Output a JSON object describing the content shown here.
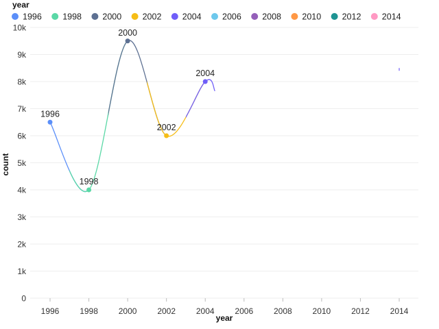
{
  "chart_data": {
    "type": "line",
    "legend": {
      "title": "year",
      "placement": "top-left",
      "entries": [
        {
          "label": "1996",
          "color": "#5b8ff9"
        },
        {
          "label": "1998",
          "color": "#5ad8a6"
        },
        {
          "label": "2000",
          "color": "#5d7092"
        },
        {
          "label": "2002",
          "color": "#f6bd16"
        },
        {
          "label": "2004",
          "color": "#6f5ef9"
        },
        {
          "label": "2006",
          "color": "#6dc8ec"
        },
        {
          "label": "2008",
          "color": "#945fb9"
        },
        {
          "label": "2010",
          "color": "#ff9845"
        },
        {
          "label": "2012",
          "color": "#1e9493"
        },
        {
          "label": "2014",
          "color": "#ff99c3"
        }
      ]
    },
    "xlabel": "year",
    "ylabel": "count",
    "x_ticks": [
      "1996",
      "1998",
      "2000",
      "2002",
      "2004",
      "2006",
      "2008",
      "2010",
      "2012",
      "2014"
    ],
    "xlim": [
      1996,
      2014
    ],
    "y_ticks": [
      "0",
      "1k",
      "2k",
      "3k",
      "4k",
      "5k",
      "6k",
      "7k",
      "8k",
      "9k",
      "10k"
    ],
    "ylim": [
      0,
      10000
    ],
    "grid": "horizontal",
    "smooth": true,
    "points": [
      {
        "x": 1996,
        "y": 6500,
        "label": "1996",
        "color": "#5b8ff9"
      },
      {
        "x": 1998,
        "y": 4000,
        "label": "1998",
        "color": "#5ad8a6"
      },
      {
        "x": 2000,
        "y": 9500,
        "label": "2000",
        "color": "#5d7092"
      },
      {
        "x": 2002,
        "y": 6000,
        "label": "2002",
        "color": "#f6bd16"
      },
      {
        "x": 2004,
        "y": 8000,
        "label": "2004",
        "color": "#6f5ef9"
      }
    ],
    "trailing_end": {
      "x": 2004.5,
      "y": 7650
    },
    "stray_mark": {
      "x": 2014,
      "y": 8450,
      "color": "#6f5ef9"
    }
  }
}
